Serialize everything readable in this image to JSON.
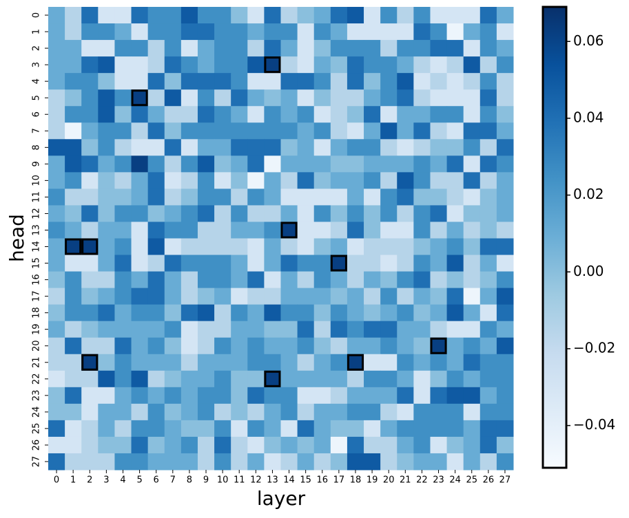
{
  "chart_data": {
    "type": "heatmap",
    "xlabel": "layer",
    "ylabel": "head",
    "x_categories": [
      "0",
      "1",
      "2",
      "3",
      "4",
      "5",
      "6",
      "7",
      "8",
      "9",
      "10",
      "11",
      "12",
      "13",
      "14",
      "15",
      "16",
      "17",
      "18",
      "19",
      "20",
      "21",
      "22",
      "23",
      "24",
      "25",
      "26",
      "27"
    ],
    "y_categories": [
      "0",
      "1",
      "2",
      "3",
      "4",
      "5",
      "6",
      "7",
      "8",
      "9",
      "10",
      "11",
      "12",
      "13",
      "14",
      "15",
      "16",
      "17",
      "18",
      "19",
      "20",
      "21",
      "22",
      "23",
      "24",
      "25",
      "26",
      "27"
    ],
    "colormap": [
      "#f7fbff",
      "#deebf7",
      "#c6dbef",
      "#9ecae1",
      "#6baed6",
      "#4292c6",
      "#2171b5",
      "#08519c",
      "#08306b"
    ],
    "clim": [
      -0.051,
      0.069
    ],
    "cticks": [
      {
        "value": -0.04,
        "label": "−0.04"
      },
      {
        "value": -0.02,
        "label": "−0.02"
      },
      {
        "value": 0,
        "label": "0.00"
      },
      {
        "value": 0.02,
        "label": "0.02"
      },
      {
        "value": 0.04,
        "label": "0.04"
      },
      {
        "value": 0.06,
        "label": "0.06"
      }
    ],
    "highlighted_cells": [
      {
        "head": 3,
        "layer": 13
      },
      {
        "head": 5,
        "layer": 5
      },
      {
        "head": 13,
        "layer": 14
      },
      {
        "head": 14,
        "layer": 1
      },
      {
        "head": 14,
        "layer": 2
      },
      {
        "head": 15,
        "layer": 17
      },
      {
        "head": 20,
        "layer": 23
      },
      {
        "head": 21,
        "layer": 2
      },
      {
        "head": 21,
        "layer": 18
      },
      {
        "head": 22,
        "layer": 13
      }
    ],
    "values": [
      [
        0.01,
        -0.015,
        0.04,
        -0.03,
        -0.03,
        0.04,
        0.025,
        0.025,
        0.05,
        0.025,
        0.025,
        0,
        -0.03,
        0.04,
        -0.015,
        0,
        0.01,
        0.04,
        0.05,
        -0.03,
        0.025,
        -0.015,
        0.025,
        -0.03,
        -0.03,
        -0.03,
        0.04,
        0.01
      ],
      [
        0.01,
        -0.015,
        0.025,
        0.025,
        0.01,
        -0.03,
        0.025,
        0.025,
        0.04,
        0.04,
        0.025,
        0.025,
        0.01,
        0.025,
        0.025,
        -0.03,
        0.025,
        0.01,
        -0.03,
        -0.03,
        -0.03,
        -0.03,
        0.04,
        0.025,
        -0.045,
        0.01,
        0.025,
        -0.03
      ],
      [
        0.01,
        0.01,
        -0.03,
        -0.03,
        0.025,
        0.025,
        -0.015,
        0.025,
        -0.03,
        0.01,
        0.025,
        0.025,
        -0.015,
        0.04,
        0.01,
        -0.03,
        0,
        0.025,
        0.025,
        0.025,
        -0.015,
        0.025,
        0.025,
        0.04,
        0.04,
        -0.03,
        0.025,
        0.01
      ],
      [
        0.01,
        0.01,
        0.04,
        0.05,
        -0.03,
        -0.03,
        -0.015,
        0.04,
        0.025,
        0.01,
        0.025,
        0.025,
        0.05,
        0.062,
        -0.015,
        -0.03,
        0.01,
        0,
        0.04,
        0.025,
        0.025,
        0.01,
        -0.015,
        -0.03,
        -0.015,
        0.05,
        -0.015,
        0.025
      ],
      [
        0.01,
        0.025,
        0.025,
        0,
        -0.03,
        -0.03,
        0.04,
        0,
        0.04,
        0.04,
        0.04,
        0.025,
        -0.03,
        -0.03,
        0.04,
        0.04,
        0.025,
        -0.015,
        0.04,
        0,
        0.025,
        0.05,
        -0.03,
        -0.015,
        -0.03,
        -0.015,
        0.025,
        -0.015
      ],
      [
        -0.015,
        0,
        0.025,
        0.05,
        0.025,
        0.062,
        -0.015,
        0.05,
        -0.03,
        0.025,
        -0.015,
        0.04,
        0.01,
        0,
        0.01,
        -0.03,
        0,
        -0.015,
        -0.015,
        0.01,
        0.025,
        0.04,
        -0.015,
        -0.03,
        -0.03,
        -0.03,
        0.04,
        -0.015
      ],
      [
        -0.015,
        0.025,
        0.025,
        0.05,
        0,
        0.04,
        0.01,
        -0.015,
        -0.015,
        0.04,
        0.025,
        0.01,
        -0.03,
        0.025,
        0.01,
        0.025,
        -0.03,
        -0.015,
        0,
        0.04,
        -0.03,
        0.01,
        0.01,
        0.025,
        0.025,
        -0.03,
        0.025,
        0
      ],
      [
        -0.015,
        -0.045,
        0.01,
        0.025,
        0.025,
        -0.015,
        0.04,
        0,
        0.025,
        0.025,
        0.025,
        0.025,
        0.025,
        0.025,
        0.025,
        0.01,
        0.025,
        -0.015,
        -0.03,
        0.01,
        0.05,
        0.01,
        0.04,
        -0.015,
        -0.03,
        0.04,
        0.04,
        0.01
      ],
      [
        0.05,
        0.05,
        0,
        0.025,
        -0.015,
        -0.03,
        -0.03,
        0.04,
        -0.03,
        0.01,
        0.01,
        0.04,
        0.04,
        0.04,
        0,
        0.01,
        -0.03,
        0.01,
        0.025,
        0.025,
        -0.015,
        -0.03,
        -0.015,
        0,
        0,
        0.025,
        -0.015,
        0.04
      ],
      [
        0.01,
        0.05,
        0.04,
        0.01,
        0.025,
        0.062,
        0.025,
        -0.015,
        0.025,
        0.05,
        0,
        0.01,
        0.04,
        -0.045,
        0.01,
        0.01,
        0.01,
        0,
        0,
        0.01,
        0.01,
        0.01,
        0.025,
        0.01,
        0.04,
        -0.03,
        0.04,
        0.025
      ],
      [
        0.01,
        0.025,
        -0.03,
        0,
        -0.015,
        0.01,
        0.04,
        -0.03,
        -0.015,
        0.025,
        -0.03,
        0,
        -0.045,
        0.01,
        -0.015,
        0.04,
        0,
        0.01,
        0.01,
        0.025,
        -0.015,
        0.05,
        0.025,
        -0.015,
        -0.015,
        0.04,
        -0.015,
        0.01
      ],
      [
        0.025,
        -0.015,
        -0.015,
        0,
        0,
        0.01,
        0.04,
        -0.015,
        0,
        0.025,
        0.025,
        -0.015,
        0.025,
        0.01,
        -0.03,
        -0.03,
        -0.03,
        -0.03,
        0.01,
        -0.03,
        0.025,
        0.04,
        0,
        0,
        -0.015,
        -0.03,
        0,
        0.01
      ],
      [
        0.01,
        0,
        0.04,
        0,
        0.025,
        0.025,
        0,
        0.01,
        0.025,
        0.04,
        -0.015,
        0.025,
        -0.015,
        -0.015,
        0.01,
        -0.03,
        0.025,
        0,
        0.025,
        0,
        0.025,
        -0.015,
        0.025,
        0.04,
        -0.03,
        0,
        0,
        0.01
      ],
      [
        0.025,
        0.01,
        -0.015,
        0.01,
        0.01,
        -0.03,
        0.04,
        0.025,
        0.025,
        -0.015,
        -0.015,
        0.01,
        0.01,
        0.025,
        0.062,
        -0.03,
        -0.03,
        -0.015,
        0.04,
        0,
        -0.03,
        -0.03,
        0.025,
        -0.015,
        0.01,
        -0.015,
        0,
        -0.015
      ],
      [
        0.01,
        0.062,
        0.062,
        0.01,
        0.025,
        -0.03,
        0.05,
        -0.03,
        -0.015,
        -0.015,
        -0.015,
        -0.015,
        -0.03,
        0.01,
        -0.015,
        -0.03,
        0,
        0.01,
        -0.03,
        -0.015,
        -0.015,
        -0.015,
        0,
        0.01,
        0.025,
        0,
        0.04,
        0.04
      ],
      [
        0.01,
        -0.03,
        -0.03,
        0.01,
        0.04,
        -0.03,
        -0.015,
        0.04,
        0.025,
        0.025,
        0.025,
        0.01,
        -0.03,
        0.01,
        0.04,
        0.025,
        0.025,
        0.062,
        -0.015,
        -0.015,
        -0.03,
        -0.015,
        0.025,
        0.01,
        0.05,
        -0.015,
        0.01,
        -0.03
      ],
      [
        0,
        0.025,
        -0.015,
        -0.015,
        0.025,
        0.01,
        0.04,
        0.01,
        -0.015,
        0.025,
        0.025,
        0.01,
        0.04,
        -0.03,
        0.01,
        -0.015,
        0.025,
        0.01,
        -0.015,
        0.01,
        0,
        0.025,
        0.04,
        -0.015,
        0,
        -0.015,
        0,
        0.025
      ],
      [
        -0.015,
        0.025,
        0,
        0.01,
        0.025,
        0.04,
        0.04,
        0.01,
        -0.015,
        0,
        0.01,
        -0.03,
        -0.015,
        -0.015,
        0.01,
        0.01,
        0.01,
        0,
        0.01,
        -0.015,
        0.025,
        -0.015,
        0.01,
        0,
        0.04,
        -0.045,
        0.01,
        0.05
      ],
      [
        0,
        0.025,
        0.025,
        0.04,
        0.01,
        0.025,
        0.025,
        0,
        0.04,
        0.05,
        -0.015,
        0.025,
        0.01,
        0.05,
        0.025,
        0.025,
        0,
        0.025,
        0.01,
        0,
        0.01,
        0.025,
        0,
        0.01,
        0.05,
        0.01,
        -0.03,
        0.04
      ],
      [
        0.01,
        -0.015,
        0,
        0.01,
        0.01,
        0.01,
        0.01,
        0.025,
        -0.03,
        -0.015,
        -0.015,
        0.01,
        0.01,
        0,
        0,
        0.04,
        -0.015,
        0.04,
        0.025,
        0.04,
        0.04,
        0.01,
        0.01,
        -0.015,
        -0.03,
        -0.03,
        0.025,
        0.01
      ],
      [
        -0.015,
        0.04,
        -0.015,
        -0.015,
        0.04,
        0.01,
        0.025,
        0,
        -0.03,
        -0.015,
        0.025,
        0.01,
        0.025,
        0.01,
        0.01,
        0.025,
        0,
        -0.015,
        0.01,
        0.01,
        0.025,
        0.01,
        0,
        0.062,
        0.01,
        0.025,
        0.01,
        0.05
      ],
      [
        -0.015,
        -0.015,
        0.062,
        0,
        0.025,
        0.01,
        0.01,
        0.01,
        -0.015,
        0.01,
        0.01,
        0.01,
        0.025,
        0.025,
        0.01,
        -0.015,
        0.01,
        0.025,
        0.062,
        -0.03,
        -0.03,
        0.025,
        0.01,
        0.025,
        0.01,
        0.04,
        0.025,
        0.025
      ],
      [
        -0.03,
        -0.015,
        -0.015,
        0.05,
        0.025,
        0.05,
        -0.015,
        0,
        0.01,
        0.01,
        0.025,
        0,
        0,
        0.062,
        0.01,
        0.01,
        0.01,
        0.01,
        -0.015,
        0.025,
        0.025,
        0.01,
        -0.03,
        0,
        0.025,
        0.01,
        0.025,
        0.025
      ],
      [
        0,
        0.04,
        -0.03,
        -0.03,
        0.01,
        0.025,
        0.01,
        0.025,
        0.01,
        0.025,
        0.025,
        0,
        0.04,
        0.025,
        0.025,
        -0.03,
        -0.03,
        -0.015,
        0.01,
        0.01,
        0.01,
        0.04,
        -0.03,
        0.04,
        0.05,
        0.05,
        0.01,
        0.025
      ],
      [
        0,
        0,
        -0.03,
        0.01,
        0.01,
        -0.015,
        0.025,
        0,
        0.01,
        0.025,
        -0.015,
        0,
        -0.015,
        0.01,
        0.025,
        -0.015,
        0.01,
        0.01,
        0.025,
        0.025,
        -0.015,
        -0.03,
        0.025,
        0.025,
        0.025,
        -0.03,
        0.025,
        0.025
      ],
      [
        0.04,
        -0.03,
        -0.015,
        0.01,
        -0.015,
        0.025,
        0.025,
        0.01,
        0,
        0,
        0.025,
        -0.03,
        0.025,
        0.01,
        -0.03,
        0.04,
        0.01,
        0,
        0,
        -0.03,
        0.01,
        0.025,
        0.025,
        0.025,
        0.025,
        0.01,
        0.04,
        0.04
      ],
      [
        -0.03,
        -0.03,
        -0.015,
        0,
        0,
        0.04,
        0,
        0.01,
        0.025,
        -0.015,
        0.04,
        -0.015,
        -0.03,
        0,
        0.01,
        0,
        0.01,
        -0.045,
        0.04,
        -0.015,
        -0.015,
        0.01,
        0.025,
        -0.03,
        0,
        0.01,
        0.04,
        0
      ],
      [
        0.04,
        -0.015,
        -0.015,
        -0.015,
        0.025,
        0.025,
        0.01,
        0.01,
        0.01,
        -0.015,
        0.025,
        -0.015,
        0.01,
        -0.03,
        -0.015,
        0.01,
        -0.015,
        0,
        0.05,
        0.05,
        -0.015,
        0,
        0.01,
        0.01,
        -0.03,
        0.01,
        -0.015,
        0.025
      ]
    ]
  }
}
